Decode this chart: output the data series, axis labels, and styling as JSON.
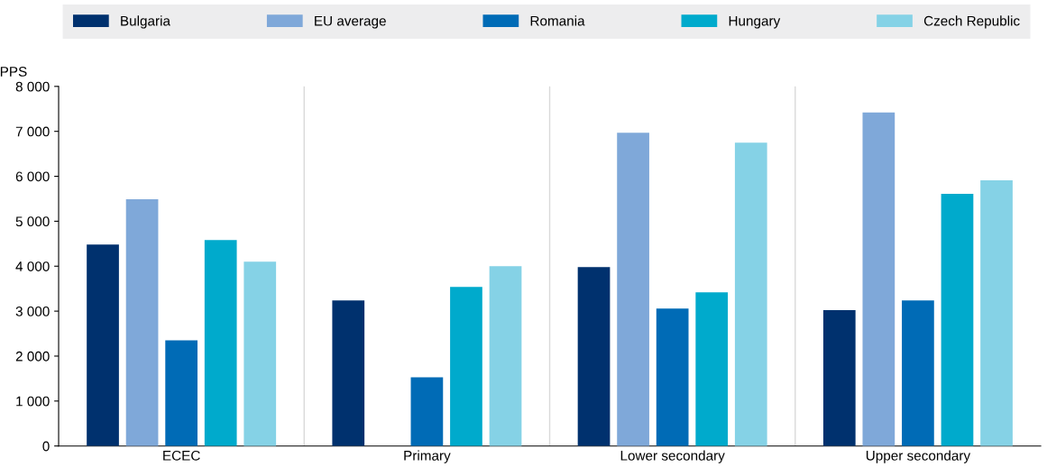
{
  "chart_data": {
    "type": "bar",
    "ylabel": "PPS",
    "categories": [
      "ECEC",
      "Primary",
      "Lower secondary",
      "Upper secondary"
    ],
    "series": [
      {
        "name": "Bulgaria",
        "color": "#00316e",
        "values": [
          4480,
          3240,
          3980,
          3020
        ]
      },
      {
        "name": "EU average",
        "color": "#7fa8d9",
        "values": [
          5490,
          null,
          6970,
          7420
        ]
      },
      {
        "name": "Romania",
        "color": "#006bb6",
        "values": [
          2350,
          1530,
          3060,
          3240
        ]
      },
      {
        "name": "Hungary",
        "color": "#00aacc",
        "values": [
          4580,
          3540,
          3420,
          5610
        ]
      },
      {
        "name": "Czech Republic",
        "color": "#85d2e6",
        "values": [
          4100,
          4000,
          6750,
          5910
        ]
      }
    ],
    "ylim": [
      0,
      8000
    ],
    "yticks": [
      0,
      {
        "value": 1000,
        "label": "1 000"
      },
      {
        "value": 2000,
        "label": "2 000"
      },
      {
        "value": 3000,
        "label": "3 000"
      },
      {
        "value": 4000,
        "label": "4 000"
      },
      {
        "value": 5000,
        "label": "5 000"
      },
      {
        "value": 6000,
        "label": "6 000"
      },
      {
        "value": 7000,
        "label": "7 000"
      },
      {
        "value": 8000,
        "label": "8 000"
      }
    ],
    "legend": "top"
  }
}
